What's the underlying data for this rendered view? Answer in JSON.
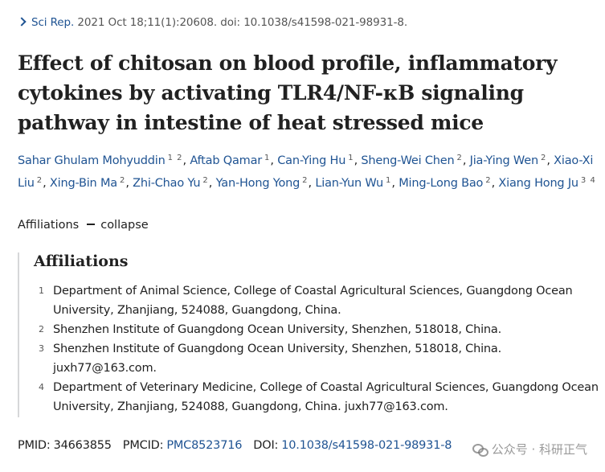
{
  "citation": {
    "journal": "Sci Rep.",
    "details": "2021 Oct 18;11(1):20608. doi: 10.1038/s41598-021-98931-8."
  },
  "title": "Effect of chitosan on blood profile, inflammatory cytokines by activating TLR4/NF-κB signaling pathway in intestine of heat stressed mice",
  "authors": [
    {
      "name": "Sahar Ghulam Mohyuddin",
      "aff": "1 2"
    },
    {
      "name": "Aftab Qamar",
      "aff": "1"
    },
    {
      "name": "Can-Ying Hu",
      "aff": "1"
    },
    {
      "name": "Sheng-Wei Chen",
      "aff": "2"
    },
    {
      "name": "Jia-Ying Wen",
      "aff": "2"
    },
    {
      "name": "Xiao-Xi Liu",
      "aff": "2"
    },
    {
      "name": "Xing-Bin Ma",
      "aff": "2"
    },
    {
      "name": "Zhi-Chao Yu",
      "aff": "2"
    },
    {
      "name": "Yan-Hong Yong",
      "aff": "2"
    },
    {
      "name": "Lian-Yun Wu",
      "aff": "1"
    },
    {
      "name": "Ming-Long Bao",
      "aff": "2"
    },
    {
      "name": "Xiang Hong Ju",
      "aff": "3 4"
    }
  ],
  "affiliations_toggle": {
    "label": "Affiliations",
    "action": "collapse"
  },
  "affiliations": {
    "heading": "Affiliations",
    "items": [
      {
        "num": "1",
        "text": "Department of Animal Science, College of Coastal Agricultural Sciences, Guangdong Ocean University, Zhanjiang, 524088, Guangdong, China."
      },
      {
        "num": "2",
        "text": "Shenzhen Institute of Guangdong Ocean University, Shenzhen, 518018, China."
      },
      {
        "num": "3",
        "text": "Shenzhen Institute of Guangdong Ocean University, Shenzhen, 518018, China. juxh77@163.com."
      },
      {
        "num": "4",
        "text": "Department of Veterinary Medicine, College of Coastal Agricultural Sciences, Guangdong Ocean University, Zhanjiang, 524088, Guangdong, China. juxh77@163.com."
      }
    ]
  },
  "identifiers": {
    "pmid_label": "PMID:",
    "pmid": "34663855",
    "pmcid_label": "PMCID:",
    "pmcid": "PMC8523716",
    "doi_label": "DOI:",
    "doi": "10.1038/s41598-021-98931-8"
  },
  "watermark": {
    "text": "公众号 · 科研正气"
  }
}
